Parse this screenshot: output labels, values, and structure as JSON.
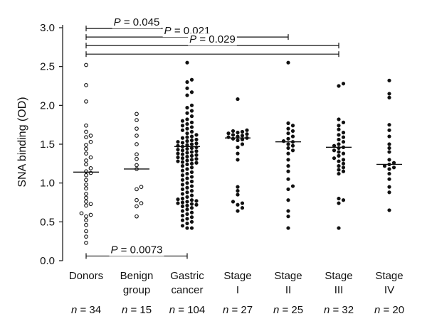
{
  "chart_data": {
    "type": "scatter",
    "subtype": "dot-plot",
    "ylabel": "SNA binding (OD)",
    "ylim": [
      0,
      3.0
    ],
    "yticks": [
      "0.0",
      "0.5",
      "1.0",
      "1.5",
      "2.0",
      "2.5",
      "3.0"
    ],
    "ytick_values": [
      0,
      0.5,
      1.0,
      1.5,
      2.0,
      2.5,
      3.0
    ],
    "grid": false,
    "groups": [
      {
        "label_lines": [
          "Donors",
          ""
        ],
        "n_prefix": "n",
        "n_text": " = 34",
        "marker": "open",
        "median": 1.14,
        "values": [
          2.52,
          2.26,
          2.05,
          1.74,
          1.66,
          1.61,
          1.59,
          1.53,
          1.49,
          1.44,
          1.38,
          1.33,
          1.29,
          1.24,
          1.19,
          1.15,
          1.13,
          1.1,
          1.04,
          0.98,
          0.93,
          0.86,
          0.81,
          0.76,
          0.73,
          0.71,
          0.61,
          0.59,
          0.57,
          0.52,
          0.46,
          0.38,
          0.31,
          0.23
        ]
      },
      {
        "label_lines": [
          "Benign",
          "group"
        ],
        "n_prefix": "n",
        "n_text": " = 15",
        "marker": "open",
        "median": 1.18,
        "values": [
          1.89,
          1.81,
          1.7,
          1.61,
          1.5,
          1.37,
          1.31,
          1.23,
          1.18,
          0.95,
          0.92,
          0.78,
          0.74,
          0.7,
          0.57
        ]
      },
      {
        "label_lines": [
          "Gastric",
          "cancer"
        ],
        "n_prefix": "n",
        "n_text": " = 104",
        "marker": "filled",
        "median": 1.47,
        "values": [
          2.55,
          2.33,
          2.3,
          2.22,
          2.17,
          2.13,
          2.0,
          1.97,
          1.93,
          1.9,
          1.86,
          1.82,
          1.8,
          1.78,
          1.76,
          1.74,
          1.72,
          1.7,
          1.68,
          1.66,
          1.64,
          1.62,
          1.6,
          1.59,
          1.58,
          1.56,
          1.55,
          1.54,
          1.53,
          1.52,
          1.51,
          1.5,
          1.49,
          1.48,
          1.47,
          1.46,
          1.45,
          1.44,
          1.43,
          1.42,
          1.41,
          1.4,
          1.39,
          1.38,
          1.37,
          1.36,
          1.35,
          1.34,
          1.33,
          1.32,
          1.31,
          1.3,
          1.29,
          1.28,
          1.27,
          1.26,
          1.25,
          1.24,
          1.22,
          1.2,
          1.18,
          1.16,
          1.14,
          1.12,
          1.1,
          1.08,
          1.06,
          1.04,
          1.02,
          1.0,
          0.98,
          0.96,
          0.94,
          0.92,
          0.9,
          0.88,
          0.86,
          0.84,
          0.82,
          0.8,
          0.79,
          0.78,
          0.77,
          0.76,
          0.75,
          0.74,
          0.73,
          0.72,
          0.71,
          0.7,
          0.68,
          0.66,
          0.64,
          0.62,
          0.6,
          0.58,
          0.56,
          0.54,
          0.52,
          0.5,
          0.48,
          0.45,
          0.42,
          0.42
        ]
      },
      {
        "label_lines": [
          "Stage",
          "I"
        ],
        "n_prefix": "n",
        "n_text": " = 27",
        "marker": "filled",
        "median": 1.58,
        "values": [
          2.08,
          1.68,
          1.67,
          1.66,
          1.65,
          1.64,
          1.63,
          1.62,
          1.61,
          1.6,
          1.59,
          1.58,
          1.57,
          1.56,
          1.55,
          1.5,
          1.46,
          1.38,
          1.3,
          0.95,
          0.9,
          0.85,
          0.76,
          0.74,
          0.72,
          0.68,
          0.64
        ]
      },
      {
        "label_lines": [
          "Stage",
          "II"
        ],
        "n_prefix": "n",
        "n_text": " = 25",
        "marker": "filled",
        "median": 1.53,
        "values": [
          2.55,
          1.77,
          1.74,
          1.7,
          1.67,
          1.64,
          1.6,
          1.57,
          1.54,
          1.53,
          1.5,
          1.48,
          1.45,
          1.42,
          1.38,
          1.3,
          1.22,
          1.15,
          1.05,
          0.96,
          0.92,
          0.78,
          0.64,
          0.57,
          0.42
        ]
      },
      {
        "label_lines": [
          "Stage",
          "III"
        ],
        "n_prefix": "n",
        "n_text": " = 32",
        "marker": "filled",
        "median": 1.46,
        "values": [
          2.28,
          2.25,
          1.82,
          1.78,
          1.74,
          1.69,
          1.65,
          1.62,
          1.59,
          1.56,
          1.53,
          1.5,
          1.48,
          1.46,
          1.45,
          1.42,
          1.4,
          1.38,
          1.35,
          1.32,
          1.3,
          1.28,
          1.25,
          1.22,
          1.2,
          1.17,
          1.15,
          1.12,
          0.8,
          0.78,
          0.74,
          0.42
        ]
      },
      {
        "label_lines": [
          "Stage",
          "IV"
        ],
        "n_prefix": "n",
        "n_text": " = 20",
        "marker": "filled",
        "median": 1.24,
        "values": [
          2.32,
          2.15,
          2.1,
          1.75,
          1.68,
          1.6,
          1.5,
          1.45,
          1.4,
          1.3,
          1.26,
          1.24,
          1.22,
          1.2,
          1.18,
          1.12,
          1.05,
          0.95,
          0.88,
          0.65
        ]
      }
    ],
    "comparisons": [
      {
        "from_group": 0,
        "to_group": 2,
        "y": 0.06,
        "p_prefix": "P",
        "p_text": " = 0.0073"
      },
      {
        "from_group": 0,
        "to_group": 2,
        "y": 2.99,
        "p_prefix": "P",
        "p_text": " = 0.045"
      },
      {
        "from_group": 0,
        "to_group": 4,
        "y": 2.88,
        "p_prefix": "P",
        "p_text": " = 0.021"
      },
      {
        "from_group": 0,
        "to_group": 5,
        "y": 2.77,
        "p_prefix": "P",
        "p_text": " = 0.029"
      },
      {
        "from_group": 0,
        "to_group": 5,
        "y": 2.66,
        "p_prefix": "",
        "p_text": ""
      }
    ],
    "colors": {
      "ink": "#111111",
      "open_fill": "#ffffff"
    }
  }
}
